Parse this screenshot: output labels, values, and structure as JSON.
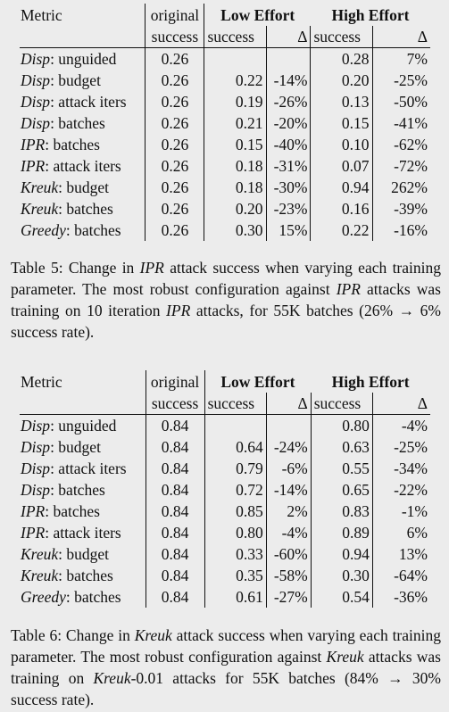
{
  "tables": [
    {
      "header": {
        "metric": "Metric",
        "original": "original",
        "low_effort": "Low Effort",
        "high_effort": "High Effort",
        "success": "success",
        "delta": "Δ"
      },
      "rows": [
        {
          "name": "Disp",
          "param": ": unguided",
          "orig": "0.26",
          "low_s": "",
          "low_d": "",
          "high_s": "0.28",
          "high_d": "7%"
        },
        {
          "name": "Disp",
          "param": ": budget",
          "orig": "0.26",
          "low_s": "0.22",
          "low_d": "-14%",
          "high_s": "0.20",
          "high_d": "-25%"
        },
        {
          "name": "Disp",
          "param": ": attack iters",
          "orig": "0.26",
          "low_s": "0.19",
          "low_d": "-26%",
          "high_s": "0.13",
          "high_d": "-50%"
        },
        {
          "name": "Disp",
          "param": ": batches",
          "orig": "0.26",
          "low_s": "0.21",
          "low_d": "-20%",
          "high_s": "0.15",
          "high_d": "-41%"
        },
        {
          "name": "IPR",
          "param": ": batches",
          "orig": "0.26",
          "low_s": "0.15",
          "low_d": "-40%",
          "high_s": "0.10",
          "high_d": "-62%"
        },
        {
          "name": "IPR",
          "param": ": attack iters",
          "orig": "0.26",
          "low_s": "0.18",
          "low_d": "-31%",
          "high_s": "0.07",
          "high_d": "-72%"
        },
        {
          "name": "Kreuk",
          "param": ": budget",
          "orig": "0.26",
          "low_s": "0.18",
          "low_d": "-30%",
          "high_s": "0.94",
          "high_d": "262%"
        },
        {
          "name": "Kreuk",
          "param": ": batches",
          "orig": "0.26",
          "low_s": "0.20",
          "low_d": "-23%",
          "high_s": "0.16",
          "high_d": "-39%"
        },
        {
          "name": "Greedy",
          "param": ": batches",
          "orig": "0.26",
          "low_s": "0.30",
          "low_d": "15%",
          "high_s": "0.22",
          "high_d": "-16%"
        }
      ],
      "caption": [
        {
          "t": "Table 5: Change in "
        },
        {
          "t": "IPR",
          "i": true
        },
        {
          "t": " attack success when varying each training parameter. The most robust configuration against "
        },
        {
          "t": "IPR",
          "i": true
        },
        {
          "t": " attacks was training on 10 iteration "
        },
        {
          "t": "IPR",
          "i": true
        },
        {
          "t": " attacks, for 55K batches (26% → 6% success rate)."
        }
      ]
    },
    {
      "header": {
        "metric": "Metric",
        "original": "original",
        "low_effort": "Low Effort",
        "high_effort": "High Effort",
        "success": "success",
        "delta": "Δ"
      },
      "rows": [
        {
          "name": "Disp",
          "param": ": unguided",
          "orig": "0.84",
          "low_s": "",
          "low_d": "",
          "high_s": "0.80",
          "high_d": "-4%"
        },
        {
          "name": "Disp",
          "param": ": budget",
          "orig": "0.84",
          "low_s": "0.64",
          "low_d": "-24%",
          "high_s": "0.63",
          "high_d": "-25%"
        },
        {
          "name": "Disp",
          "param": ": attack iters",
          "orig": "0.84",
          "low_s": "0.79",
          "low_d": "-6%",
          "high_s": "0.55",
          "high_d": "-34%"
        },
        {
          "name": "Disp",
          "param": ": batches",
          "orig": "0.84",
          "low_s": "0.72",
          "low_d": "-14%",
          "high_s": "0.65",
          "high_d": "-22%"
        },
        {
          "name": "IPR",
          "param": ": batches",
          "orig": "0.84",
          "low_s": "0.85",
          "low_d": "2%",
          "high_s": "0.83",
          "high_d": "-1%"
        },
        {
          "name": "IPR",
          "param": ": attack iters",
          "orig": "0.84",
          "low_s": "0.80",
          "low_d": "-4%",
          "high_s": "0.89",
          "high_d": "6%"
        },
        {
          "name": "Kreuk",
          "param": ": budget",
          "orig": "0.84",
          "low_s": "0.33",
          "low_d": "-60%",
          "high_s": "0.94",
          "high_d": "13%"
        },
        {
          "name": "Kreuk",
          "param": ": batches",
          "orig": "0.84",
          "low_s": "0.35",
          "low_d": "-58%",
          "high_s": "0.30",
          "high_d": "-64%"
        },
        {
          "name": "Greedy",
          "param": ": batches",
          "orig": "0.84",
          "low_s": "0.61",
          "low_d": "-27%",
          "high_s": "0.54",
          "high_d": "-36%"
        }
      ],
      "caption": [
        {
          "t": "Table 6: Change in "
        },
        {
          "t": "Kreuk",
          "i": true
        },
        {
          "t": " attack success when varying each training parameter. The most robust configuration against "
        },
        {
          "t": "Kreuk",
          "i": true
        },
        {
          "t": " attacks was training on "
        },
        {
          "t": "Kreuk",
          "i": true
        },
        {
          "t": "-0.01 attacks for 55K batches (84% → 30% success rate)."
        }
      ]
    }
  ]
}
